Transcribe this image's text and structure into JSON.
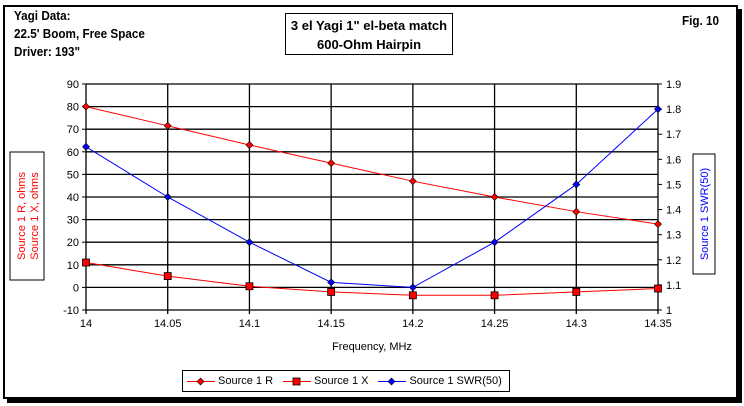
{
  "info": {
    "line1": "Yagi Data:",
    "line2": "22.5' Boom, Free Space",
    "line3": "Driver: 193\""
  },
  "fig": "Fig. 10",
  "title": {
    "line1": "3 el Yagi 1\" el-beta match",
    "line2": "600-Ohm Hairpin"
  },
  "chart_data": {
    "type": "line",
    "title": "3 el Yagi 1\" el-beta match 600-Ohm Hairpin",
    "xlabel": "Frequency, MHz",
    "ylabel": "Source 1 R, ohms\nSource 1 X, ohms",
    "ylabel_lines": [
      "Source 1 R, ohms",
      "Source 1 X, ohms"
    ],
    "y2label": "Source 1 SWR(50)",
    "x": [
      14,
      14.05,
      14.1,
      14.15,
      14.2,
      14.25,
      14.3,
      14.35
    ],
    "x_ticks": [
      "14",
      "14.05",
      "14.1",
      "14.15",
      "14.2",
      "14.25",
      "14.3",
      "14.35"
    ],
    "ylim": [
      -10,
      90
    ],
    "y_ticks": [
      "-10",
      "0",
      "10",
      "20",
      "30",
      "40",
      "50",
      "60",
      "70",
      "80",
      "90"
    ],
    "y2lim": [
      1,
      1.9
    ],
    "y2_ticks": [
      "1",
      "1.1",
      "1.2",
      "1.3",
      "1.4",
      "1.5",
      "1.6",
      "1.7",
      "1.8",
      "1.9"
    ],
    "grid": true,
    "legend_position": "bottom",
    "series": [
      {
        "name": "Source 1 R",
        "axis": "left",
        "color": "#ff0000",
        "marker": "diamond",
        "values": [
          80,
          71.5,
          63,
          55,
          47,
          40,
          33.5,
          28
        ]
      },
      {
        "name": "Source 1 X",
        "axis": "left",
        "color": "#ff0000",
        "marker": "square",
        "values": [
          11,
          5,
          0.5,
          -2,
          -3.5,
          -3.5,
          -2,
          -0.5
        ]
      },
      {
        "name": "Source 1 SWR(50)",
        "axis": "right",
        "color": "#0000ff",
        "marker": "diamond",
        "values": [
          1.65,
          1.45,
          1.27,
          1.11,
          1.09,
          1.27,
          1.5,
          1.8
        ]
      }
    ]
  }
}
